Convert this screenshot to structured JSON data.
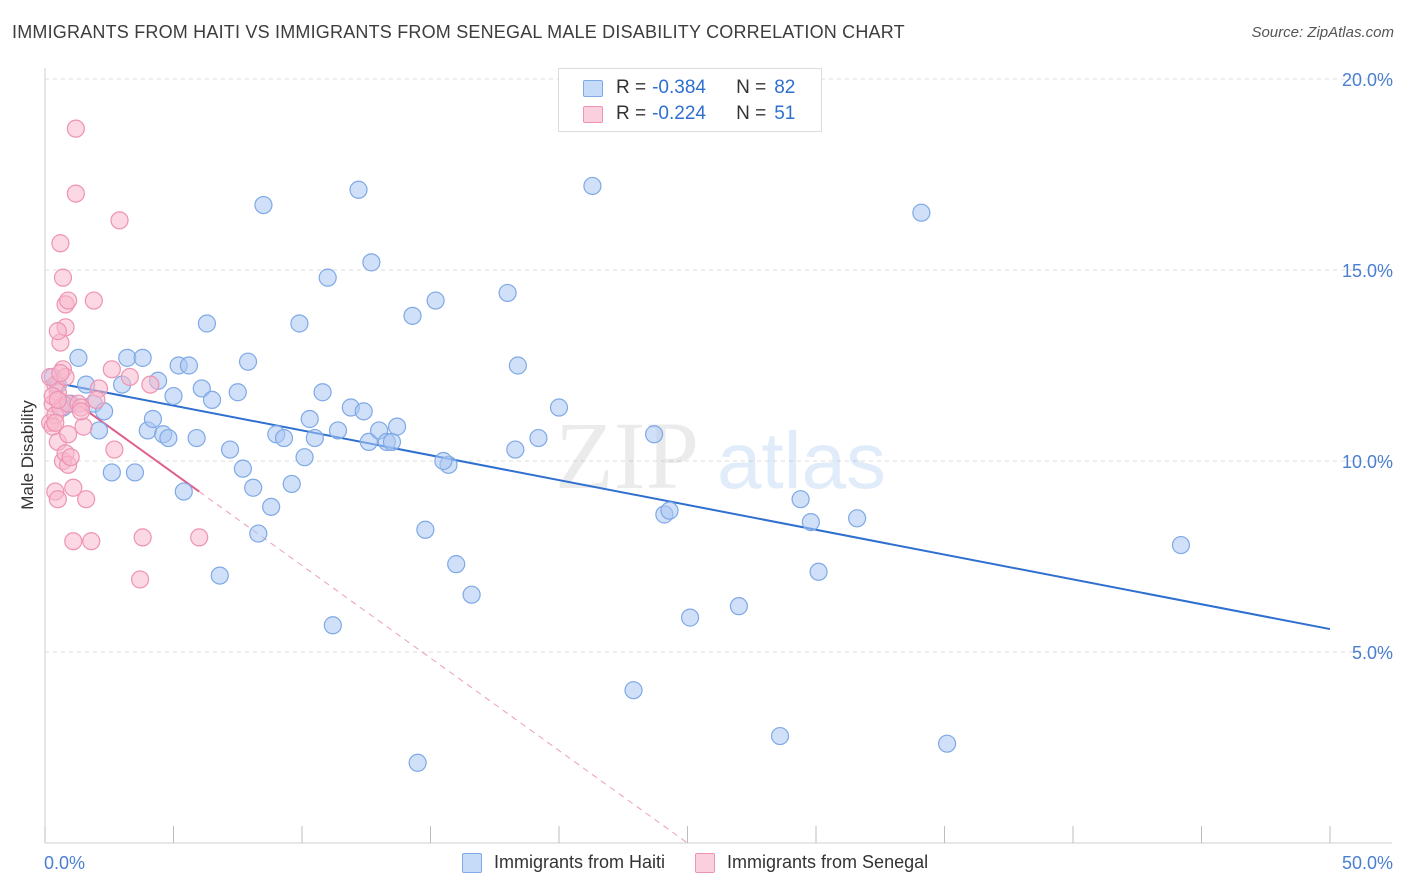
{
  "header": {
    "title": "IMMIGRANTS FROM HAITI VS IMMIGRANTS FROM SENEGAL MALE DISABILITY CORRELATION CHART",
    "source": "Source: ZipAtlas.com"
  },
  "watermark": {
    "part1": "ZIP",
    "part2": "atlas"
  },
  "legend": {
    "rows": [
      {
        "r_label": "R =",
        "r_value": "-0.384",
        "n_label": "N =",
        "n_value": "82"
      },
      {
        "r_label": "R =",
        "r_value": "-0.224",
        "n_label": "N =",
        "n_value": "51"
      }
    ]
  },
  "chart_data": {
    "type": "scatter",
    "title": "IMMIGRANTS FROM HAITI VS IMMIGRANTS FROM SENEGAL MALE DISABILITY CORRELATION CHART",
    "xlabel": "",
    "ylabel": "Male Disability",
    "xlim": [
      0,
      50
    ],
    "ylim": [
      0,
      20.6
    ],
    "x_tick_labels": [
      "0.0%",
      "50.0%"
    ],
    "y_ticks": [
      5,
      10,
      15,
      20
    ],
    "y_tick_labels": [
      "5.0%",
      "10.0%",
      "15.0%",
      "20.0%"
    ],
    "grid": true,
    "legend_position": "top-center",
    "series": [
      {
        "name": "Immigrants from Haiti",
        "color": "#a9c7f2",
        "stroke": "#7fa9e6",
        "trend_color": "#2f6fd0",
        "R": -0.384,
        "N": 82,
        "trend": {
          "x": [
            0,
            50
          ],
          "y": [
            12.1,
            5.6
          ]
        },
        "points": [
          [
            0.3,
            12.2
          ],
          [
            0.5,
            12.0
          ],
          [
            0.7,
            11.4
          ],
          [
            1.0,
            11.5
          ],
          [
            1.3,
            12.7
          ],
          [
            1.6,
            12.0
          ],
          [
            1.9,
            11.5
          ],
          [
            2.1,
            10.8
          ],
          [
            2.3,
            11.3
          ],
          [
            2.6,
            9.7
          ],
          [
            3.0,
            12.0
          ],
          [
            3.2,
            12.7
          ],
          [
            3.5,
            9.7
          ],
          [
            3.8,
            12.7
          ],
          [
            4.0,
            10.8
          ],
          [
            4.2,
            11.1
          ],
          [
            4.4,
            12.1
          ],
          [
            4.6,
            10.7
          ],
          [
            4.8,
            10.6
          ],
          [
            5.0,
            11.7
          ],
          [
            5.2,
            12.5
          ],
          [
            5.4,
            9.2
          ],
          [
            5.6,
            12.5
          ],
          [
            5.9,
            10.6
          ],
          [
            6.1,
            11.9
          ],
          [
            6.3,
            13.6
          ],
          [
            6.5,
            11.6
          ],
          [
            6.8,
            7.0
          ],
          [
            7.2,
            10.3
          ],
          [
            7.5,
            11.8
          ],
          [
            7.7,
            9.8
          ],
          [
            7.9,
            12.6
          ],
          [
            8.1,
            9.3
          ],
          [
            8.3,
            8.1
          ],
          [
            8.5,
            16.7
          ],
          [
            8.8,
            8.8
          ],
          [
            9.0,
            10.7
          ],
          [
            9.3,
            10.6
          ],
          [
            9.6,
            9.4
          ],
          [
            9.9,
            13.6
          ],
          [
            10.1,
            10.1
          ],
          [
            10.3,
            11.1
          ],
          [
            10.5,
            10.6
          ],
          [
            10.8,
            11.8
          ],
          [
            11.0,
            14.8
          ],
          [
            11.2,
            5.7
          ],
          [
            11.4,
            10.8
          ],
          [
            11.9,
            11.4
          ],
          [
            12.2,
            17.1
          ],
          [
            12.4,
            11.3
          ],
          [
            12.6,
            10.5
          ],
          [
            12.7,
            15.2
          ],
          [
            13.0,
            10.8
          ],
          [
            13.3,
            10.5
          ],
          [
            13.5,
            10.5
          ],
          [
            13.7,
            10.9
          ],
          [
            14.3,
            13.8
          ],
          [
            14.5,
            2.1
          ],
          [
            14.8,
            8.2
          ],
          [
            15.2,
            14.2
          ],
          [
            15.7,
            9.9
          ],
          [
            16.0,
            7.3
          ],
          [
            16.6,
            6.5
          ],
          [
            15.5,
            10.0
          ],
          [
            18.0,
            14.4
          ],
          [
            18.3,
            10.3
          ],
          [
            18.4,
            12.5
          ],
          [
            19.2,
            10.6
          ],
          [
            20.0,
            11.4
          ],
          [
            21.3,
            17.2
          ],
          [
            22.9,
            4.0
          ],
          [
            23.7,
            10.7
          ],
          [
            24.1,
            8.6
          ],
          [
            24.3,
            8.7
          ],
          [
            25.1,
            5.9
          ],
          [
            27.0,
            6.2
          ],
          [
            28.6,
            2.8
          ],
          [
            29.4,
            9.0
          ],
          [
            29.8,
            8.4
          ],
          [
            30.1,
            7.1
          ],
          [
            31.6,
            8.5
          ],
          [
            34.1,
            16.5
          ],
          [
            35.1,
            2.6
          ],
          [
            44.2,
            7.8
          ]
        ]
      },
      {
        "name": "Immigrants from Senegal",
        "color": "#f7b8cc",
        "stroke": "#ee93b1",
        "trend_color": "#e05d8c",
        "R": -0.224,
        "N": 51,
        "trend": {
          "x": [
            0,
            6.0
          ],
          "y": [
            12.1,
            9.2
          ]
        },
        "trend_ext": {
          "x": [
            6.0,
            25.0
          ],
          "y": [
            9.2,
            0
          ]
        },
        "points": [
          [
            0.2,
            11.0
          ],
          [
            0.3,
            11.5
          ],
          [
            0.4,
            11.2
          ],
          [
            0.5,
            11.8
          ],
          [
            0.3,
            10.9
          ],
          [
            0.4,
            12.0
          ],
          [
            0.6,
            11.4
          ],
          [
            0.2,
            12.2
          ],
          [
            0.4,
            11.0
          ],
          [
            0.5,
            10.5
          ],
          [
            0.6,
            15.7
          ],
          [
            0.7,
            14.8
          ],
          [
            0.8,
            14.1
          ],
          [
            0.9,
            14.2
          ],
          [
            0.6,
            13.1
          ],
          [
            0.8,
            13.5
          ],
          [
            0.5,
            13.4
          ],
          [
            0.7,
            12.4
          ],
          [
            0.8,
            12.2
          ],
          [
            0.9,
            11.5
          ],
          [
            0.4,
            9.2
          ],
          [
            0.5,
            9.0
          ],
          [
            0.7,
            10.0
          ],
          [
            0.8,
            10.2
          ],
          [
            0.9,
            9.9
          ],
          [
            1.0,
            10.1
          ],
          [
            1.1,
            9.3
          ],
          [
            1.1,
            7.9
          ],
          [
            1.2,
            18.7
          ],
          [
            1.2,
            17.0
          ],
          [
            1.3,
            11.5
          ],
          [
            1.4,
            11.4
          ],
          [
            1.5,
            10.9
          ],
          [
            1.6,
            9.0
          ],
          [
            1.8,
            7.9
          ],
          [
            1.9,
            14.2
          ],
          [
            2.1,
            11.9
          ],
          [
            2.0,
            11.6
          ],
          [
            2.6,
            12.4
          ],
          [
            2.7,
            10.3
          ],
          [
            2.9,
            16.3
          ],
          [
            3.3,
            12.2
          ],
          [
            3.7,
            6.9
          ],
          [
            3.8,
            8.0
          ],
          [
            4.1,
            12.0
          ],
          [
            6.0,
            8.0
          ],
          [
            0.3,
            11.7
          ],
          [
            0.6,
            12.3
          ],
          [
            0.9,
            10.7
          ],
          [
            1.4,
            11.3
          ],
          [
            0.5,
            11.6
          ]
        ]
      }
    ]
  }
}
